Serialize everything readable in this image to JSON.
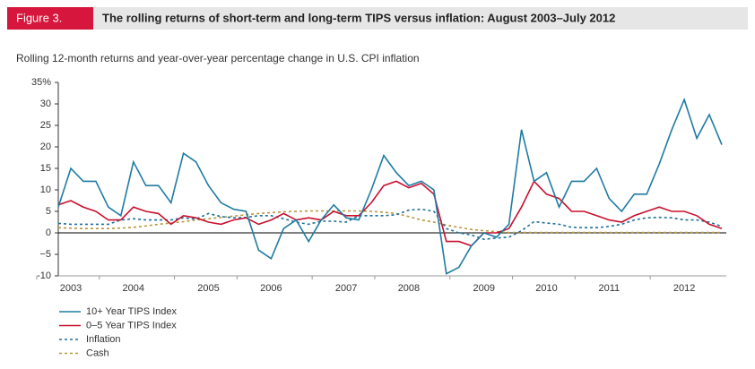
{
  "chart_data": {
    "type": "line",
    "figure_label": "Figure 3.",
    "title": "The rolling returns of short-term and long-term TIPS versus inflation: August 2003–July 2012",
    "subtitle": "Rolling 12-month returns and year-over-year percentage change in U.S. CPI inflation",
    "categories": [
      null,
      "2003",
      null,
      null,
      null,
      null,
      "2004",
      null,
      null,
      null,
      null,
      null,
      "2005",
      null,
      null,
      null,
      null,
      "2006",
      null,
      null,
      null,
      null,
      null,
      "2007",
      null,
      null,
      null,
      null,
      "2008",
      null,
      null,
      null,
      null,
      null,
      "2009",
      null,
      null,
      null,
      null,
      "2010",
      null,
      null,
      null,
      null,
      "2011",
      null,
      null,
      null,
      null,
      null,
      "2012",
      null,
      null,
      null
    ],
    "ylim": [
      -10,
      35
    ],
    "yticks": [
      -10,
      {
        "value": -5,
        "label": "−5"
      },
      0,
      5,
      10,
      15,
      20,
      25,
      30,
      {
        "value": 35,
        "label": "35%"
      }
    ],
    "zero_line": true,
    "series": [
      {
        "name": "10+ Year TIPS Index",
        "color": "#1f7ba3",
        "dash": "solid",
        "values": [
          6,
          15,
          12,
          12,
          6,
          4,
          16.5,
          11,
          11,
          7,
          18.5,
          16.5,
          11,
          7,
          5.5,
          5,
          -4,
          -6,
          1,
          3,
          -2,
          3,
          6.5,
          3.5,
          3,
          10,
          18,
          14,
          11,
          12,
          10,
          -9.5,
          -8,
          -3,
          0,
          -1,
          2,
          24,
          12,
          14,
          6,
          12,
          12,
          15,
          8,
          5,
          9,
          9,
          16,
          24,
          31,
          22,
          27.5,
          20.5
        ]
      },
      {
        "name": "0–5 Year TIPS Index",
        "color": "#c8102e",
        "dash": "solid",
        "values": [
          6.5,
          7.5,
          6,
          5,
          3,
          3,
          6,
          5,
          4.5,
          2,
          4,
          3.5,
          2.5,
          2,
          3,
          3.5,
          2,
          3,
          4.5,
          3,
          3.5,
          3,
          5,
          4,
          4,
          7,
          11,
          12,
          10.5,
          11.5,
          9,
          -2,
          -2,
          -3,
          0,
          0,
          1,
          6,
          12,
          9,
          8,
          5,
          5,
          4,
          3,
          2.5,
          4,
          5,
          6,
          5,
          5,
          4,
          2,
          1
        ]
      },
      {
        "name": "Inflation",
        "color": "#1f6f9a",
        "dash": "dotted",
        "values": [
          2.2,
          2,
          2,
          2,
          2,
          3,
          3.3,
          3,
          3,
          3,
          3.5,
          3.2,
          4.5,
          3.8,
          3.5,
          3.6,
          4,
          4,
          3.3,
          2.5,
          2,
          2.7,
          2.7,
          2.5,
          4,
          4,
          4,
          4.2,
          5.3,
          5.5,
          5,
          1,
          0,
          -0.5,
          -1.5,
          -1.2,
          -1,
          0.5,
          2.6,
          2.3,
          2,
          1.3,
          1.2,
          1.2,
          1.5,
          2,
          3,
          3.5,
          3.6,
          3.5,
          3,
          3,
          2.5,
          1.5
        ]
      },
      {
        "name": "Cash",
        "color": "#b8963e",
        "dash": "dotted",
        "values": [
          1.2,
          1.1,
          1,
          1,
          1,
          1.1,
          1.3,
          1.6,
          2,
          2.3,
          2.6,
          3,
          3.3,
          3.6,
          3.9,
          4.2,
          4.5,
          4.7,
          4.9,
          5,
          5.1,
          5.1,
          5.1,
          5.1,
          5.1,
          5,
          4.8,
          4.5,
          3.8,
          3,
          2.5,
          1.8,
          1.3,
          0.8,
          0.5,
          0.3,
          0.1,
          0.1,
          0.1,
          0.1,
          0.1,
          0.1,
          0.1,
          0.1,
          0.1,
          0.1,
          0.1,
          0.1,
          0.1,
          0.1,
          0.1,
          0.1,
          0.1,
          0.1
        ]
      }
    ]
  }
}
